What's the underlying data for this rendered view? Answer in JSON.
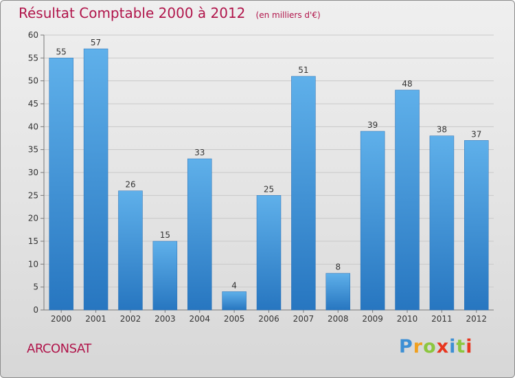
{
  "chart_data": {
    "type": "bar",
    "title": "Résultat Comptable 2000 à 2012",
    "subtitle": "(en milliers d'€)",
    "categories": [
      "2000",
      "2001",
      "2002",
      "2003",
      "2004",
      "2005",
      "2006",
      "2007",
      "2008",
      "2009",
      "2010",
      "2011",
      "2012"
    ],
    "values": [
      55,
      57,
      26,
      15,
      33,
      4,
      25,
      51,
      8,
      39,
      48,
      38,
      37
    ],
    "ylim": [
      0,
      60
    ],
    "yticks": [
      0,
      5,
      10,
      15,
      20,
      25,
      30,
      35,
      40,
      45,
      50,
      55,
      60
    ],
    "grid": true,
    "bar_color": "#3f8fd6",
    "text_color": "#b0144a"
  },
  "commune": "ARCONSAT",
  "brand": {
    "letters": [
      "P",
      "r",
      "o",
      "x",
      "i",
      "t",
      "i"
    ],
    "colors": [
      "#3d8fd4",
      "#f0a020",
      "#8cc63f",
      "#e8351e",
      "#3d8fd4",
      "#8cc63f",
      "#e8351e"
    ]
  }
}
